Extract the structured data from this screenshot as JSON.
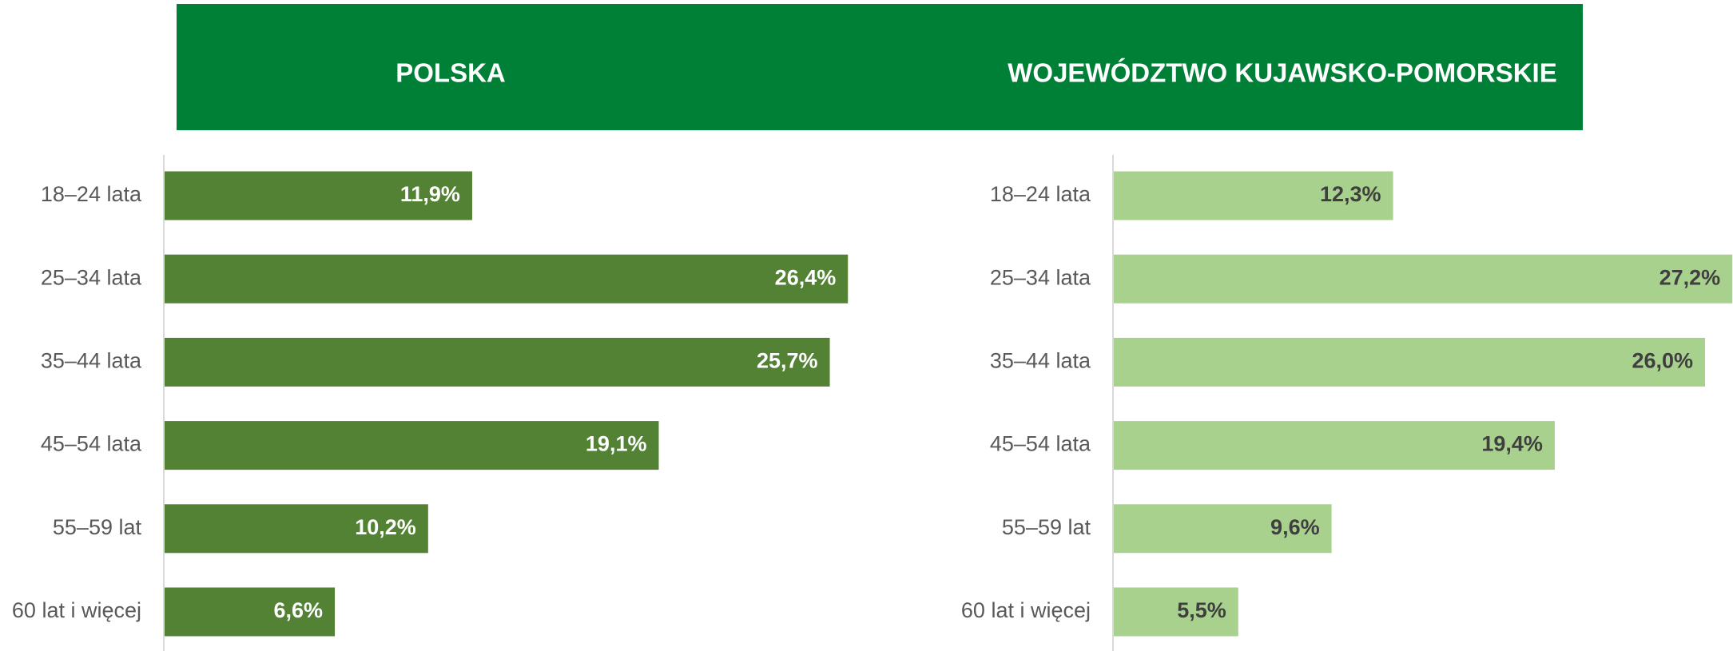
{
  "chart_data": [
    {
      "type": "bar",
      "orientation": "horizontal",
      "title": "POLSKA",
      "categories": [
        "18–24 lata",
        "25–34 lata",
        "35–44 lata",
        "45–54 lata",
        "55–59 lat",
        "60 lat i więcej"
      ],
      "values": [
        11.9,
        26.4,
        25.7,
        19.1,
        10.2,
        6.6
      ],
      "value_labels": [
        "11,9%",
        "26,4%",
        "25,7%",
        "19,1%",
        "10,2%",
        "6,6%"
      ],
      "color": "#548235",
      "label_color": "#ffffff",
      "xlim": [
        0,
        30
      ]
    },
    {
      "type": "bar",
      "orientation": "horizontal",
      "title": "WOJEWÓDZTWO KUJAWSKO-POMORSKIE",
      "categories": [
        "18–24 lata",
        "25–34 lata",
        "35–44 lata",
        "45–54 lata",
        "55–59 lat",
        "60 lat i więcej"
      ],
      "values": [
        12.3,
        27.2,
        26.0,
        19.4,
        9.6,
        5.5
      ],
      "value_labels": [
        "12,3%",
        "27,2%",
        "26,0%",
        "19,4%",
        "9,6%",
        "5,5%"
      ],
      "color": "#a9d18e",
      "label_color": "#3f3f3f",
      "xlim": [
        0,
        30
      ]
    }
  ]
}
